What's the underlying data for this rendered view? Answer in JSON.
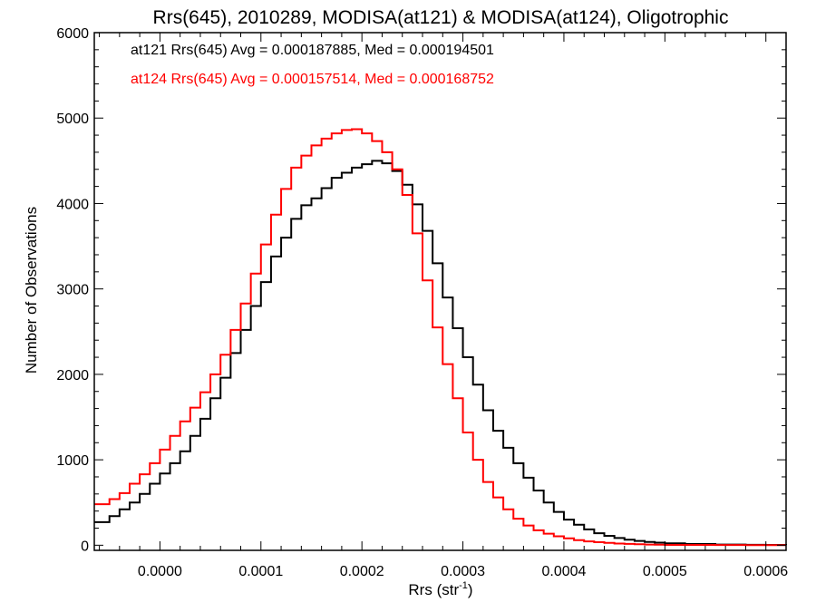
{
  "chart_data": {
    "type": "line",
    "title": "Rrs(645), 2010289, MODISA(at121) & MODISA(at124), Oligotrophic",
    "xlabel": "Rrs (str",
    "xlabel_sup": "-1",
    "xlabel_end": ")",
    "ylabel": "Number of Observations",
    "xlim": [
      -6.5e-05,
      0.00062
    ],
    "ylim": [
      -60,
      6000
    ],
    "x_ticks": [
      0.0,
      0.0001,
      0.0002,
      0.0003,
      0.0004,
      0.0005,
      0.0006
    ],
    "x_tick_labels": [
      "0.0000",
      "0.0001",
      "0.0002",
      "0.0003",
      "0.0004",
      "0.0005",
      "0.0006"
    ],
    "y_ticks": [
      0,
      1000,
      2000,
      3000,
      4000,
      5000,
      6000
    ],
    "y_tick_labels": [
      "0",
      "1000",
      "2000",
      "3000",
      "4000",
      "5000",
      "6000"
    ],
    "grid": false,
    "legend": [
      {
        "text": "at121 Rrs(645) Avg = 0.000187885, Med = 0.000194501",
        "color": "#000000"
      },
      {
        "text": "at124 Rrs(645) Avg = 0.000157514, Med = 0.000168752",
        "color": "#ff0000"
      }
    ],
    "series": [
      {
        "color": "#000000",
        "x": [
          -6.5e-05,
          -5e-05,
          -4e-05,
          -3e-05,
          -2e-05,
          -1e-05,
          0.0,
          1e-05,
          2e-05,
          3e-05,
          4e-05,
          5e-05,
          6e-05,
          7e-05,
          8e-05,
          9e-05,
          0.0001,
          0.00011,
          0.00012,
          0.00013,
          0.00014,
          0.00015,
          0.00016,
          0.00017,
          0.00018,
          0.00019,
          0.0002,
          0.00021,
          0.00022,
          0.00023,
          0.00024,
          0.00025,
          0.00026,
          0.00027,
          0.00028,
          0.00029,
          0.0003,
          0.00031,
          0.00032,
          0.00033,
          0.00034,
          0.00035,
          0.00036,
          0.00037,
          0.00038,
          0.00039,
          0.0004,
          0.00041,
          0.00042,
          0.00043,
          0.00044,
          0.00045,
          0.00046,
          0.00047,
          0.00048,
          0.00049,
          0.0005,
          0.00052,
          0.00055,
          0.00058,
          0.0006,
          0.00062
        ],
        "y": [
          270,
          340,
          420,
          500,
          600,
          720,
          840,
          960,
          1100,
          1280,
          1480,
          1720,
          1960,
          2250,
          2520,
          2800,
          3080,
          3380,
          3600,
          3820,
          3980,
          4060,
          4180,
          4300,
          4360,
          4420,
          4460,
          4500,
          4470,
          4380,
          4220,
          3990,
          3680,
          3300,
          2900,
          2540,
          2200,
          1880,
          1580,
          1340,
          1140,
          960,
          790,
          640,
          500,
          390,
          300,
          240,
          185,
          140,
          110,
          85,
          65,
          50,
          38,
          30,
          22,
          14,
          8,
          5,
          3,
          2
        ]
      },
      {
        "color": "#ff0000",
        "x": [
          -6.5e-05,
          -5e-05,
          -4e-05,
          -3e-05,
          -2e-05,
          -1e-05,
          0.0,
          1e-05,
          2e-05,
          3e-05,
          4e-05,
          5e-05,
          6e-05,
          7e-05,
          8e-05,
          9e-05,
          0.0001,
          0.00011,
          0.00012,
          0.00013,
          0.00014,
          0.00015,
          0.00016,
          0.00017,
          0.00018,
          0.00019,
          0.0002,
          0.00021,
          0.00022,
          0.00023,
          0.00024,
          0.00025,
          0.00026,
          0.00027,
          0.00028,
          0.00029,
          0.0003,
          0.00031,
          0.00032,
          0.00033,
          0.00034,
          0.00035,
          0.00036,
          0.00037,
          0.00038,
          0.00039,
          0.0004,
          0.00041,
          0.00042,
          0.00043,
          0.00044,
          0.00045,
          0.00046,
          0.00047,
          0.00048,
          0.00049,
          0.0005,
          0.00052,
          0.00055,
          0.00058,
          0.0006,
          0.00062
        ],
        "y": [
          480,
          540,
          610,
          720,
          830,
          960,
          1120,
          1280,
          1450,
          1610,
          1790,
          2000,
          2230,
          2520,
          2830,
          3180,
          3520,
          3870,
          4170,
          4420,
          4560,
          4680,
          4760,
          4820,
          4860,
          4870,
          4820,
          4730,
          4600,
          4400,
          4100,
          3650,
          3100,
          2550,
          2120,
          1720,
          1320,
          1000,
          740,
          560,
          420,
          310,
          230,
          175,
          135,
          105,
          80,
          60,
          45,
          35,
          27,
          20,
          15,
          11,
          8,
          6,
          4,
          3,
          2,
          1,
          1,
          1
        ]
      }
    ]
  }
}
